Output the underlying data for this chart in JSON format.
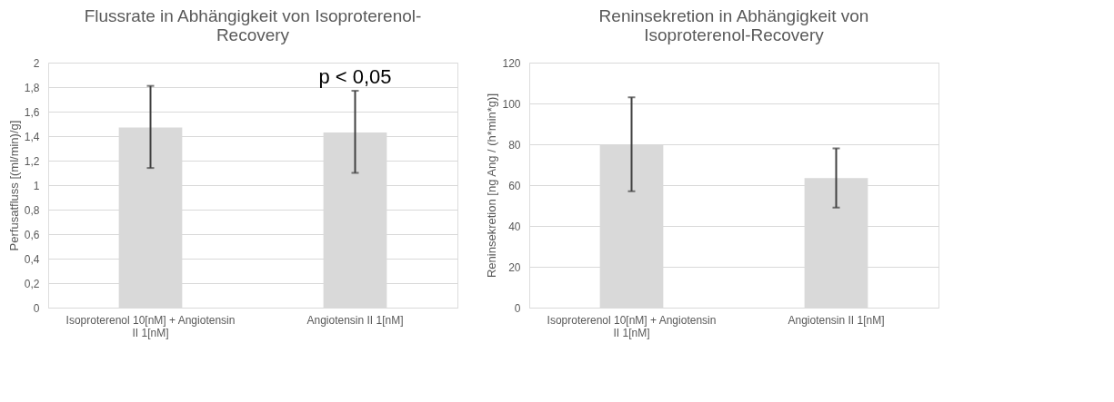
{
  "chart_data": [
    {
      "type": "bar",
      "title": "Flussrate in Abhängigkeit von Isoproterenol-Recovery",
      "ylabel": "Perfusatfluss [(ml/min)/g]",
      "categories": [
        "Isoproterenol 10[nM] + Angiotensin II 1[nM]",
        "Angiotensin II 1[nM]"
      ],
      "values": [
        1.47,
        1.43
      ],
      "color": "#d9d9d9",
      "errors": [
        [
          1.14,
          1.81
        ],
        [
          1.1,
          1.77
        ]
      ],
      "ylim": [
        0,
        2
      ],
      "yticks": [
        0,
        {
          "value": 0.2,
          "label": "0,2"
        },
        {
          "value": 0.4,
          "label": "0,4"
        },
        {
          "value": 0.6,
          "label": "0,6"
        },
        {
          "value": 0.8,
          "label": "0,8"
        },
        1,
        {
          "value": 1.2,
          "label": "1,2"
        },
        {
          "value": 1.4,
          "label": "1,4"
        },
        {
          "value": 1.6,
          "label": "1,6"
        },
        {
          "value": 1.8,
          "label": "1,8"
        },
        2
      ],
      "grid": "y",
      "annotations": [
        "p < 0,05"
      ]
    },
    {
      "type": "bar",
      "title": "Reninsekretion in Abhängigkeit von Isoproterenol-Recovery",
      "ylabel": "Reninsekretion [ng Ang / (h*min*g)]",
      "categories": [
        "Isoproterenol 10[nM] + Angiotensin II 1[nM]",
        "Angiotensin II 1[nM]"
      ],
      "values": [
        80,
        63.5
      ],
      "color": "#d9d9d9",
      "errors": [
        [
          57,
          103
        ],
        [
          49,
          78
        ]
      ],
      "ylim": [
        0,
        120
      ],
      "yticks": [
        0,
        20,
        40,
        60,
        80,
        100,
        120
      ],
      "grid": "y"
    }
  ]
}
